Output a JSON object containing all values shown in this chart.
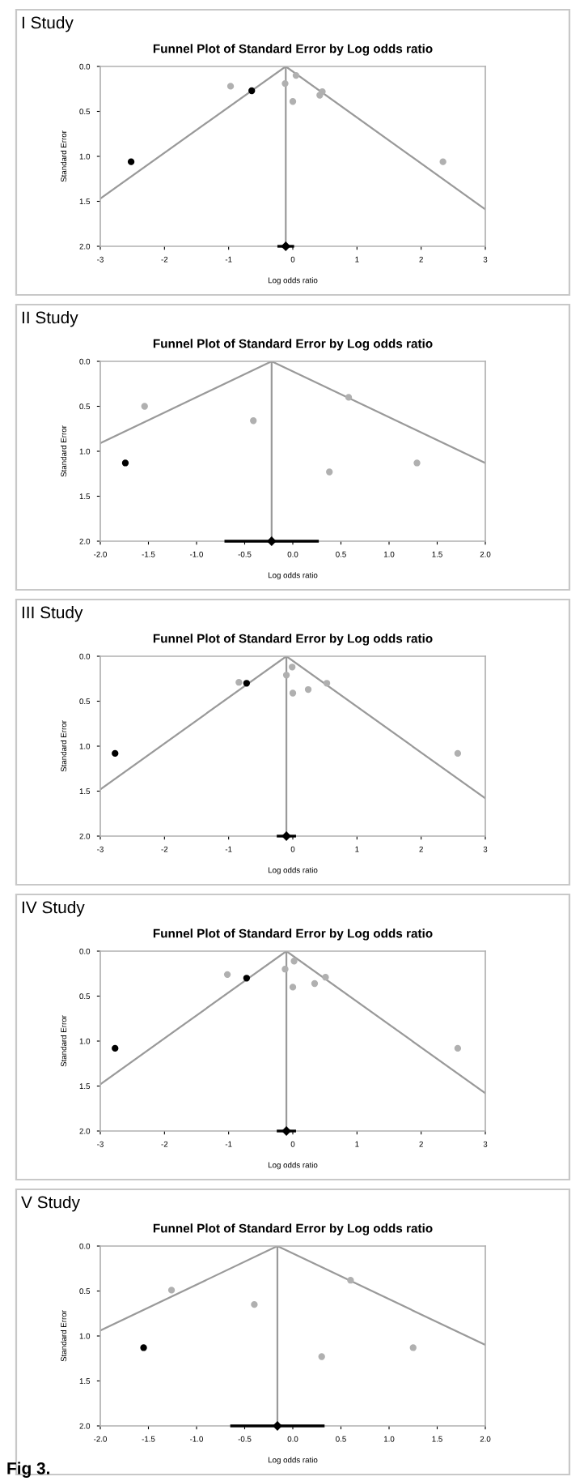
{
  "chart_data": [
    {
      "type": "scatter",
      "title": "Funnel Plot of Standard Error by Log odds ratio",
      "xlabel": "Log odds ratio",
      "ylabel": "Standard Error",
      "annotations": [
        "I Study"
      ],
      "xlim": [
        -3,
        3
      ],
      "xticks": [
        -3,
        -2,
        -1,
        0,
        1,
        2,
        3
      ],
      "ylim": [
        2.0,
        0.0
      ],
      "yticks": [
        {
          "value": 0.0,
          "label": "0.0"
        },
        {
          "value": 0.5,
          "label": "0.5"
        },
        {
          "value": 1.0,
          "label": "1.0"
        },
        {
          "value": 1.5,
          "label": "1.5"
        },
        {
          "value": 2.0,
          "label": "2.0"
        }
      ],
      "grid": false,
      "legend": false,
      "series": [
        {
          "type": "line",
          "color": "#9a9a9a",
          "x": [
            -3,
            -0.11,
            3
          ],
          "values": [
            1.47,
            0.0,
            1.59
          ]
        },
        {
          "marker": "circle",
          "color": "#b0b0b0",
          "x": [
            -0.97,
            -0.12,
            0.05,
            0.0,
            0.46,
            0.42,
            2.34
          ],
          "values": [
            0.22,
            0.19,
            0.1,
            0.39,
            0.28,
            0.32,
            1.06
          ]
        },
        {
          "marker": "circle",
          "color": "#000000",
          "x": [
            -2.52,
            -0.64
          ],
          "values": [
            1.06,
            0.27
          ]
        },
        {
          "marker": "diamond",
          "color": "#000000",
          "x": [
            -0.11
          ],
          "values": [
            2.0
          ],
          "xerrors": [
            0.13
          ]
        }
      ],
      "ref_lines": [
        {
          "axis": "x",
          "value": -0.11,
          "color": "#9a9a9a"
        }
      ]
    },
    {
      "type": "scatter",
      "title": "Funnel Plot of Standard Error by Log odds ratio",
      "xlabel": "Log odds ratio",
      "ylabel": "Standard Error",
      "annotations": [
        "II Study"
      ],
      "xlim": [
        -2.0,
        2.0
      ],
      "xticks": [
        {
          "value": -2.0,
          "label": "-2.0"
        },
        {
          "value": -1.5,
          "label": "-1.5"
        },
        {
          "value": -1.0,
          "label": "-1.0"
        },
        {
          "value": -0.5,
          "label": "-0.5"
        },
        {
          "value": 0.0,
          "label": "0.0"
        },
        {
          "value": 0.5,
          "label": "0.5"
        },
        {
          "value": 1.0,
          "label": "1.0"
        },
        {
          "value": 1.5,
          "label": "1.5"
        },
        {
          "value": 2.0,
          "label": "2.0"
        }
      ],
      "ylim": [
        2.0,
        0.0
      ],
      "yticks": [
        {
          "value": 0.0,
          "label": "0.0"
        },
        {
          "value": 0.5,
          "label": "0.5"
        },
        {
          "value": 1.0,
          "label": "1.0"
        },
        {
          "value": 1.5,
          "label": "1.5"
        },
        {
          "value": 2.0,
          "label": "2.0"
        }
      ],
      "grid": false,
      "legend": false,
      "series": [
        {
          "type": "line",
          "color": "#9a9a9a",
          "x": [
            -2.0,
            -0.22,
            2.0
          ],
          "values": [
            0.91,
            0.0,
            1.13
          ]
        },
        {
          "marker": "circle",
          "color": "#b0b0b0",
          "x": [
            -1.54,
            -0.41,
            0.58,
            0.38,
            1.29
          ],
          "values": [
            0.5,
            0.66,
            0.4,
            1.23,
            1.13
          ]
        },
        {
          "marker": "circle",
          "color": "#000000",
          "x": [
            -1.74
          ],
          "values": [
            1.13
          ]
        },
        {
          "marker": "diamond",
          "color": "#000000",
          "x": [
            -0.22
          ],
          "values": [
            2.0
          ],
          "xerrors": [
            0.49
          ]
        }
      ],
      "ref_lines": [
        {
          "axis": "x",
          "value": -0.22,
          "color": "#9a9a9a"
        }
      ]
    },
    {
      "type": "scatter",
      "title": "Funnel Plot of Standard Error by Log odds ratio",
      "xlabel": "Log odds ratio",
      "ylabel": "Standard Error",
      "annotations": [
        "III Study"
      ],
      "xlim": [
        -3,
        3
      ],
      "xticks": [
        -3,
        -2,
        -1,
        0,
        1,
        2,
        3
      ],
      "ylim": [
        2.0,
        0.0
      ],
      "yticks": [
        {
          "value": 0.0,
          "label": "0.0"
        },
        {
          "value": 0.5,
          "label": "0.5"
        },
        {
          "value": 1.0,
          "label": "1.0"
        },
        {
          "value": 1.5,
          "label": "1.5"
        },
        {
          "value": 2.0,
          "label": "2.0"
        }
      ],
      "grid": false,
      "legend": false,
      "series": [
        {
          "type": "line",
          "color": "#9a9a9a",
          "x": [
            -3,
            -0.1,
            3
          ],
          "values": [
            1.48,
            0.0,
            1.58
          ]
        },
        {
          "marker": "circle",
          "color": "#b0b0b0",
          "x": [
            -0.84,
            -0.1,
            -0.01,
            0.0,
            0.24,
            0.53,
            2.57
          ],
          "values": [
            0.29,
            0.21,
            0.12,
            0.41,
            0.37,
            0.3,
            1.08
          ]
        },
        {
          "marker": "circle",
          "color": "#000000",
          "x": [
            -2.77,
            -0.72
          ],
          "values": [
            1.08,
            0.3
          ]
        },
        {
          "marker": "diamond",
          "color": "#000000",
          "x": [
            -0.1
          ],
          "values": [
            2.0
          ],
          "xerrors": [
            0.15
          ]
        }
      ],
      "ref_lines": [
        {
          "axis": "x",
          "value": -0.1,
          "color": "#9a9a9a"
        }
      ]
    },
    {
      "type": "scatter",
      "title": "Funnel Plot of Standard Error by Log odds ratio",
      "xlabel": "Log odds ratio",
      "ylabel": "Standard Error",
      "annotations": [
        "IV Study"
      ],
      "xlim": [
        -3,
        3
      ],
      "xticks": [
        -3,
        -2,
        -1,
        0,
        1,
        2,
        3
      ],
      "ylim": [
        2.0,
        0.0
      ],
      "yticks": [
        {
          "value": 0.0,
          "label": "0.0"
        },
        {
          "value": 0.5,
          "label": "0.5"
        },
        {
          "value": 1.0,
          "label": "1.0"
        },
        {
          "value": 1.5,
          "label": "1.5"
        },
        {
          "value": 2.0,
          "label": "2.0"
        }
      ],
      "grid": false,
      "legend": false,
      "series": [
        {
          "type": "line",
          "color": "#9a9a9a",
          "x": [
            -3,
            -0.1,
            3
          ],
          "values": [
            1.48,
            0.0,
            1.58
          ]
        },
        {
          "marker": "circle",
          "color": "#b0b0b0",
          "x": [
            -1.02,
            -0.12,
            0.02,
            0.0,
            0.34,
            0.51,
            2.57
          ],
          "values": [
            0.26,
            0.2,
            0.11,
            0.4,
            0.36,
            0.29,
            1.08
          ]
        },
        {
          "marker": "circle",
          "color": "#000000",
          "x": [
            -2.77,
            -0.72
          ],
          "values": [
            1.08,
            0.3
          ]
        },
        {
          "marker": "diamond",
          "color": "#000000",
          "x": [
            -0.1
          ],
          "values": [
            2.0
          ],
          "xerrors": [
            0.15
          ]
        }
      ],
      "ref_lines": [
        {
          "axis": "x",
          "value": -0.1,
          "color": "#9a9a9a"
        }
      ]
    },
    {
      "type": "scatter",
      "title": "Funnel Plot of Standard Error by Log odds ratio",
      "xlabel": "Log odds ratio",
      "ylabel": "Standard Error",
      "annotations": [
        "V Study",
        "Fig 3."
      ],
      "xlim": [
        -2.0,
        2.0
      ],
      "xticks": [
        {
          "value": -2.0,
          "label": "-2.0"
        },
        {
          "value": -1.5,
          "label": "-1.5"
        },
        {
          "value": -1.0,
          "label": "-1.0"
        },
        {
          "value": -0.5,
          "label": "-0.5"
        },
        {
          "value": 0.0,
          "label": "0.0"
        },
        {
          "value": 0.5,
          "label": "0.5"
        },
        {
          "value": 1.0,
          "label": "1.0"
        },
        {
          "value": 1.5,
          "label": "1.5"
        },
        {
          "value": 2.0,
          "label": "2.0"
        }
      ],
      "ylim": [
        2.0,
        0.0
      ],
      "yticks": [
        {
          "value": 0.0,
          "label": "0.0"
        },
        {
          "value": 0.5,
          "label": "0.5"
        },
        {
          "value": 1.0,
          "label": "1.0"
        },
        {
          "value": 1.5,
          "label": "1.5"
        },
        {
          "value": 2.0,
          "label": "2.0"
        }
      ],
      "grid": false,
      "legend": false,
      "series": [
        {
          "type": "line",
          "color": "#9a9a9a",
          "x": [
            -2.0,
            -0.16,
            2.0
          ],
          "values": [
            0.94,
            0.0,
            1.1
          ]
        },
        {
          "marker": "circle",
          "color": "#b0b0b0",
          "x": [
            -1.26,
            -0.4,
            0.6,
            0.3,
            1.25
          ],
          "values": [
            0.49,
            0.65,
            0.38,
            1.23,
            1.13
          ]
        },
        {
          "marker": "circle",
          "color": "#000000",
          "x": [
            -1.55
          ],
          "values": [
            1.13
          ]
        },
        {
          "marker": "diamond",
          "color": "#000000",
          "x": [
            -0.16
          ],
          "values": [
            2.0
          ],
          "xerrors": [
            0.49
          ]
        }
      ],
      "ref_lines": [
        {
          "axis": "x",
          "value": -0.16,
          "color": "#9a9a9a"
        }
      ]
    }
  ]
}
